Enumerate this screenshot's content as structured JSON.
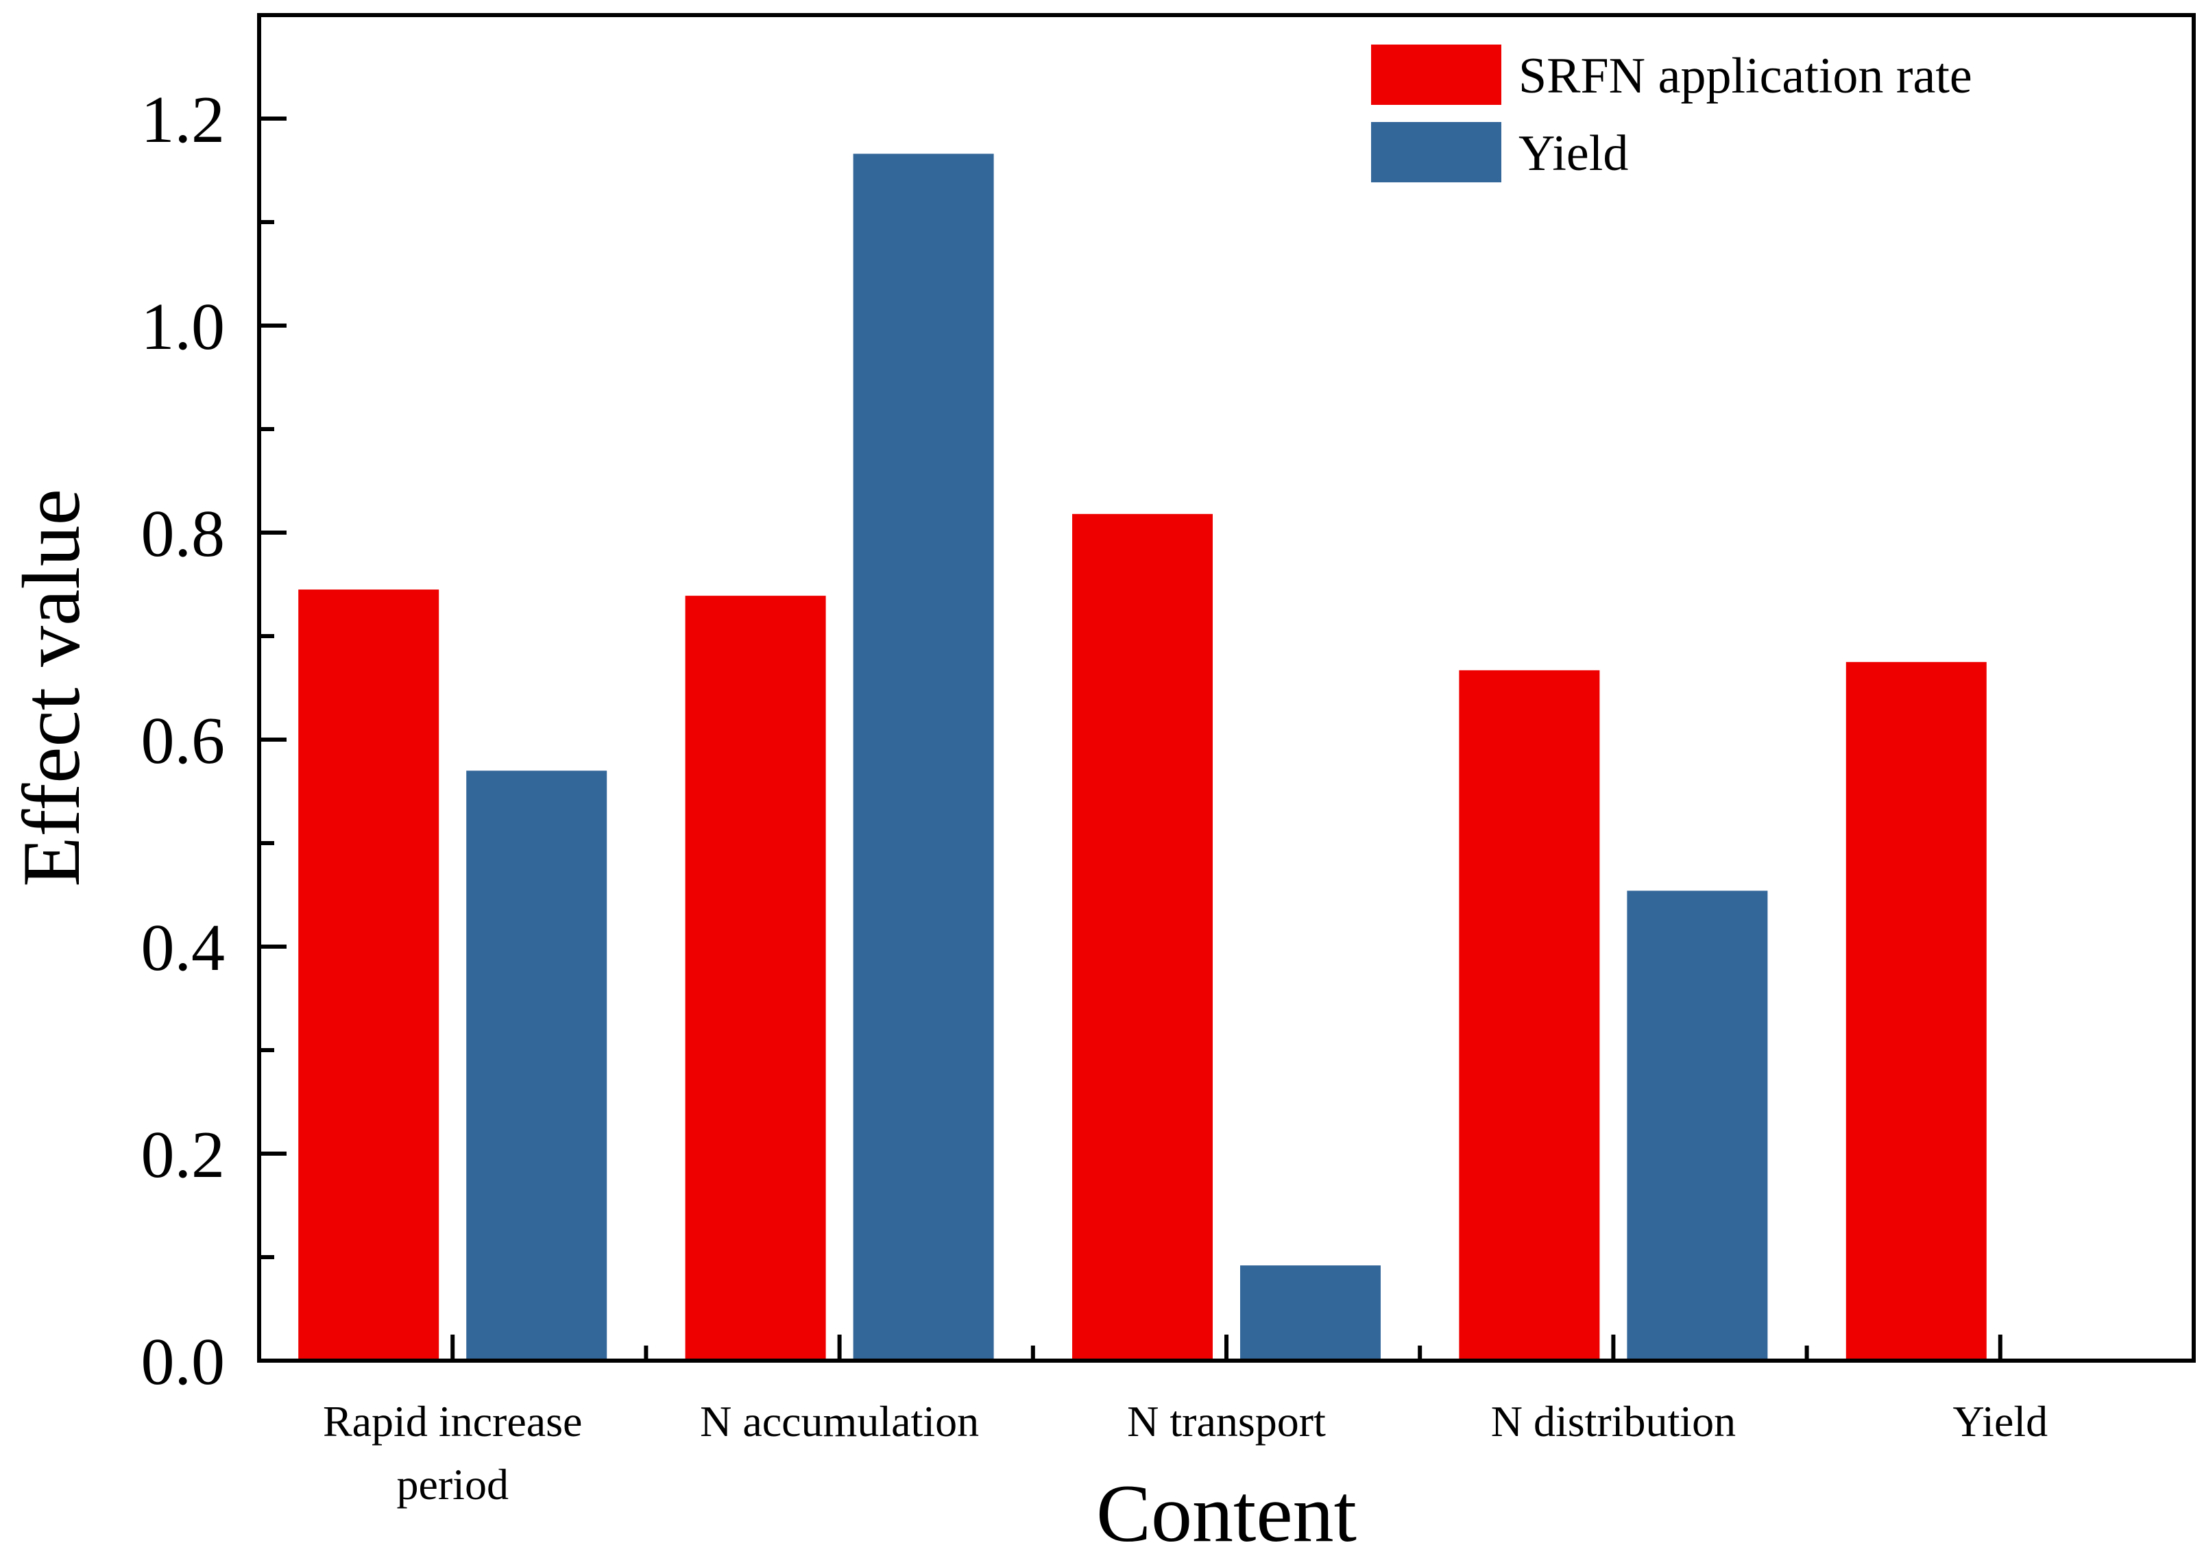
{
  "chart_data": {
    "type": "bar",
    "title": "",
    "xlabel": "Content",
    "ylabel": "Effect value",
    "ylim": [
      0,
      1.3
    ],
    "yticks": [
      "0.0",
      "0.2",
      "0.4",
      "0.6",
      "0.8",
      "1.0",
      "1.2"
    ],
    "ytick_values": [
      0,
      0.2,
      0.4,
      0.6,
      0.8,
      1.0,
      1.2
    ],
    "categories": [
      [
        "Rapid increase",
        "period"
      ],
      [
        "N accumulation"
      ],
      [
        "N transport"
      ],
      [
        "N distribution"
      ],
      [
        "Yield"
      ]
    ],
    "series": [
      {
        "name": "SRFN application rate",
        "color": "#ee0000",
        "values": [
          0.745,
          0.739,
          0.818,
          0.667,
          0.675
        ]
      },
      {
        "name": "Yield",
        "color": "#336699",
        "values": [
          0.57,
          1.166,
          0.092,
          0.454,
          0
        ]
      }
    ],
    "legend_position": "top-right",
    "grid": false
  }
}
